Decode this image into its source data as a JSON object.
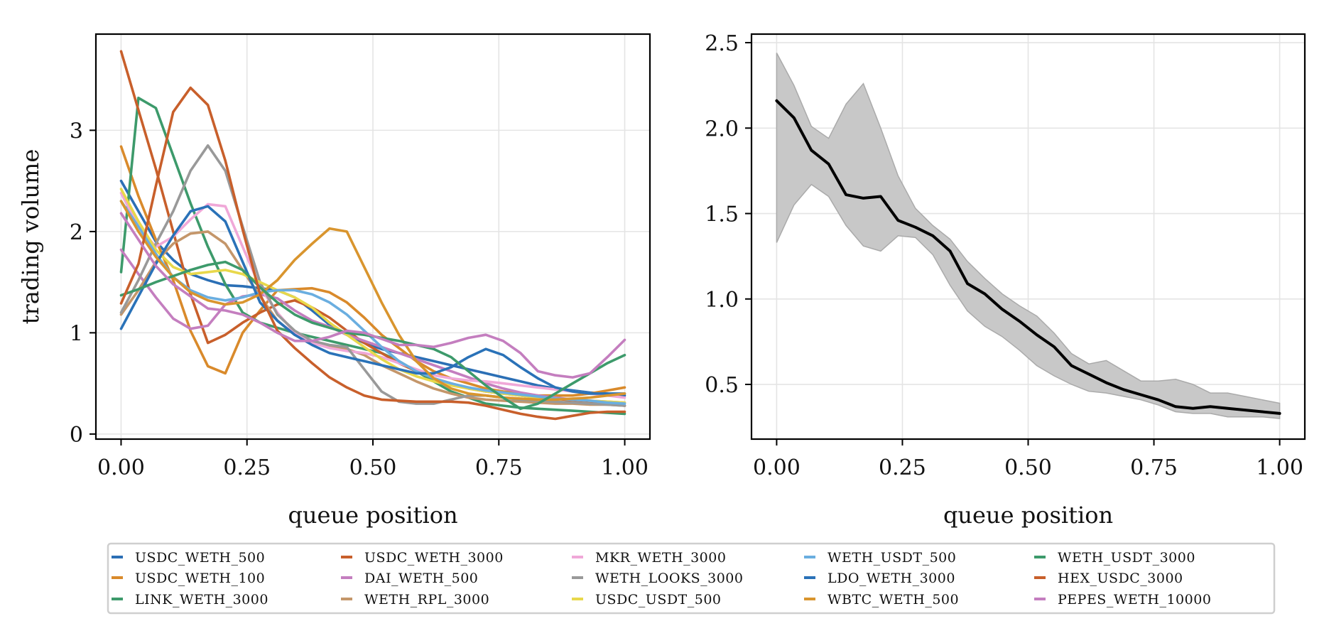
{
  "chart_data": [
    {
      "type": "line",
      "xlabel": "queue position",
      "ylabel": "trading volume",
      "xlim": [
        -0.05,
        1.05
      ],
      "ylim": [
        -0.05,
        3.95
      ],
      "xticks": [
        0.0,
        0.25,
        0.5,
        0.75,
        1.0
      ],
      "xtick_labels": [
        "0.00",
        "0.25",
        "0.50",
        "0.75",
        "1.00"
      ],
      "yticks": [
        0,
        1,
        2,
        3
      ],
      "ytick_labels": [
        "0",
        "1",
        "2",
        "3"
      ],
      "grid": true,
      "legend_placement": "bottom-center, outside",
      "x": [
        0.0,
        0.0345,
        0.069,
        0.1034,
        0.1379,
        0.1724,
        0.2069,
        0.2414,
        0.2759,
        0.3103,
        0.3448,
        0.3793,
        0.4138,
        0.4483,
        0.4828,
        0.5172,
        0.5517,
        0.5862,
        0.6207,
        0.6552,
        0.6897,
        0.7241,
        0.7586,
        0.7931,
        0.8276,
        0.8621,
        0.8966,
        0.931,
        0.9655,
        1.0
      ],
      "series": [
        {
          "name": "USDC_WETH_500",
          "color": "#2b6fb5",
          "values": [
            2.5,
            2.2,
            1.9,
            1.72,
            1.58,
            1.52,
            1.47,
            1.46,
            1.44,
            1.42,
            1.35,
            1.22,
            1.08,
            0.98,
            0.9,
            0.84,
            0.8,
            0.76,
            0.72,
            0.68,
            0.64,
            0.6,
            0.56,
            0.52,
            0.48,
            0.45,
            0.43,
            0.41,
            0.4,
            0.38
          ]
        },
        {
          "name": "USDC_WETH_100",
          "color": "#d98a2b",
          "values": [
            2.84,
            2.35,
            1.92,
            1.52,
            1.02,
            0.67,
            0.6,
            1.0,
            1.22,
            1.42,
            1.43,
            1.44,
            1.4,
            1.3,
            1.15,
            0.98,
            0.85,
            0.72,
            0.62,
            0.55,
            0.5,
            0.45,
            0.42,
            0.4,
            0.38,
            0.38,
            0.38,
            0.4,
            0.43,
            0.46
          ]
        },
        {
          "name": "LINK_WETH_3000",
          "color": "#3d9a6b",
          "values": [
            1.6,
            3.32,
            3.22,
            2.75,
            2.28,
            1.85,
            1.48,
            1.2,
            1.1,
            1.05,
            1.0,
            0.96,
            0.92,
            0.88,
            0.84,
            0.8,
            0.72,
            0.62,
            0.52,
            0.42,
            0.36,
            0.3,
            0.28,
            0.26,
            0.25,
            0.24,
            0.23,
            0.22,
            0.21,
            0.2
          ]
        },
        {
          "name": "USDC_WETH_3000",
          "color": "#c85f2b",
          "values": [
            3.78,
            3.2,
            2.62,
            2.0,
            1.38,
            0.9,
            0.98,
            1.1,
            1.2,
            1.28,
            1.32,
            1.25,
            1.15,
            1.02,
            0.9,
            0.8,
            0.7,
            0.62,
            0.55,
            0.5,
            0.45,
            0.42,
            0.4,
            0.38,
            0.36,
            0.35,
            0.33,
            0.32,
            0.3,
            0.28
          ]
        },
        {
          "name": "DAI_WETH_500",
          "color": "#c47ebf",
          "values": [
            1.82,
            1.58,
            1.35,
            1.14,
            1.04,
            1.07,
            1.28,
            1.36,
            1.38,
            1.34,
            1.22,
            1.12,
            1.06,
            0.98,
            0.92,
            0.86,
            0.8,
            0.74,
            0.68,
            0.62,
            0.56,
            0.5,
            0.45,
            0.41,
            0.38,
            0.36,
            0.34,
            0.33,
            0.32,
            0.31
          ]
        },
        {
          "name": "WETH_RPL_3000",
          "color": "#c4966a",
          "values": [
            1.18,
            1.42,
            1.7,
            1.88,
            1.98,
            2.0,
            1.88,
            1.62,
            1.36,
            1.12,
            0.98,
            0.9,
            0.86,
            0.84,
            0.78,
            0.68,
            0.6,
            0.52,
            0.45,
            0.4,
            0.36,
            0.34,
            0.33,
            0.32,
            0.31,
            0.3,
            0.3,
            0.29,
            0.29,
            0.28
          ]
        },
        {
          "name": "MKR_WETH_3000",
          "color": "#f0a8d8",
          "values": [
            2.38,
            2.05,
            1.85,
            1.95,
            2.12,
            2.27,
            2.25,
            1.85,
            1.45,
            1.2,
            1.0,
            0.9,
            0.85,
            0.82,
            0.8,
            0.76,
            0.7,
            0.64,
            0.58,
            0.55,
            0.53,
            0.52,
            0.5,
            0.48,
            0.46,
            0.44,
            0.42,
            0.4,
            0.38,
            0.36
          ]
        },
        {
          "name": "WETH_LOOKS_3000",
          "color": "#999999",
          "values": [
            1.2,
            1.52,
            1.88,
            2.2,
            2.6,
            2.85,
            2.6,
            2.05,
            1.5,
            1.18,
            1.02,
            0.92,
            0.88,
            0.86,
            0.64,
            0.42,
            0.32,
            0.3,
            0.3,
            0.34,
            0.38,
            0.38,
            0.36,
            0.34,
            0.33,
            0.32,
            0.31,
            0.3,
            0.29,
            0.28
          ]
        },
        {
          "name": "USDC_USDT_500",
          "color": "#e8d84b",
          "values": [
            2.42,
            2.1,
            1.82,
            1.65,
            1.58,
            1.6,
            1.62,
            1.58,
            1.5,
            1.42,
            1.35,
            1.25,
            1.1,
            0.98,
            0.86,
            0.74,
            0.64,
            0.57,
            0.52,
            0.48,
            0.45,
            0.42,
            0.4,
            0.38,
            0.36,
            0.35,
            0.34,
            0.33,
            0.32,
            0.31
          ]
        },
        {
          "name": "WETH_USDT_500",
          "color": "#6aaee0",
          "values": [
            2.3,
            2.05,
            1.78,
            1.55,
            1.42,
            1.35,
            1.32,
            1.35,
            1.4,
            1.42,
            1.42,
            1.38,
            1.3,
            1.18,
            1.02,
            0.86,
            0.72,
            0.62,
            0.55,
            0.5,
            0.46,
            0.43,
            0.41,
            0.39,
            0.37,
            0.35,
            0.34,
            0.33,
            0.31,
            0.3
          ]
        },
        {
          "name": "LDO_WETH_3000",
          "color": "#2a72b8",
          "values": [
            1.04,
            1.36,
            1.68,
            1.96,
            2.2,
            2.25,
            2.1,
            1.7,
            1.3,
            1.12,
            0.98,
            0.88,
            0.8,
            0.76,
            0.72,
            0.68,
            0.64,
            0.6,
            0.6,
            0.66,
            0.76,
            0.84,
            0.78,
            0.66,
            0.55,
            0.46,
            0.42,
            0.4,
            0.4,
            0.4
          ]
        },
        {
          "name": "WBTC_WETH_500",
          "color": "#d9952e",
          "values": [
            2.3,
            2.0,
            1.75,
            1.55,
            1.4,
            1.32,
            1.28,
            1.3,
            1.38,
            1.52,
            1.72,
            1.88,
            2.03,
            2.0,
            1.65,
            1.3,
            0.98,
            0.72,
            0.55,
            0.45,
            0.4,
            0.38,
            0.36,
            0.35,
            0.34,
            0.34,
            0.35,
            0.36,
            0.38,
            0.4
          ]
        },
        {
          "name": "WETH_USDT_3000",
          "color": "#3d9a6b",
          "values": [
            1.37,
            1.43,
            1.5,
            1.56,
            1.62,
            1.67,
            1.7,
            1.62,
            1.45,
            1.3,
            1.18,
            1.1,
            1.05,
            1.0,
            0.98,
            0.95,
            0.92,
            0.88,
            0.84,
            0.76,
            0.62,
            0.48,
            0.36,
            0.25,
            0.3,
            0.4,
            0.5,
            0.6,
            0.7,
            0.78
          ]
        },
        {
          "name": "HEX_USDC_3000",
          "color": "#c85f2b",
          "values": [
            1.29,
            1.68,
            2.45,
            3.18,
            3.42,
            3.25,
            2.7,
            2.02,
            1.38,
            1.02,
            0.85,
            0.7,
            0.56,
            0.46,
            0.38,
            0.34,
            0.33,
            0.32,
            0.32,
            0.32,
            0.31,
            0.28,
            0.24,
            0.2,
            0.17,
            0.15,
            0.18,
            0.21,
            0.22,
            0.22
          ]
        },
        {
          "name": "PEPES_WETH_10000",
          "color": "#c47ebf",
          "values": [
            2.18,
            1.92,
            1.66,
            1.48,
            1.36,
            1.24,
            1.22,
            1.18,
            1.1,
            1.0,
            0.92,
            0.92,
            0.96,
            1.02,
            1.0,
            0.94,
            0.88,
            0.88,
            0.86,
            0.9,
            0.95,
            0.98,
            0.92,
            0.8,
            0.62,
            0.58,
            0.56,
            0.6,
            0.76,
            0.93
          ]
        }
      ]
    },
    {
      "type": "line",
      "xlabel": "queue position",
      "ylabel": "",
      "xlim": [
        -0.05,
        1.05
      ],
      "ylim": [
        0.18,
        2.55
      ],
      "xticks": [
        0.0,
        0.25,
        0.5,
        0.75,
        1.0
      ],
      "xtick_labels": [
        "0.00",
        "0.25",
        "0.50",
        "0.75",
        "1.00"
      ],
      "yticks": [
        0.5,
        1.0,
        1.5,
        2.0,
        2.5
      ],
      "ytick_labels": [
        "0.5",
        "1.0",
        "1.5",
        "2.0",
        "2.5"
      ],
      "grid": true,
      "x": [
        0.0,
        0.0345,
        0.069,
        0.1034,
        0.1379,
        0.1724,
        0.2069,
        0.2414,
        0.2759,
        0.3103,
        0.3448,
        0.3793,
        0.4138,
        0.4483,
        0.4828,
        0.5172,
        0.5517,
        0.5862,
        0.6207,
        0.6552,
        0.6897,
        0.7241,
        0.7586,
        0.7931,
        0.8276,
        0.8621,
        0.8966,
        0.931,
        0.9655,
        1.0
      ],
      "series": [
        {
          "color": "#000000",
          "values": [
            2.16,
            2.06,
            1.87,
            1.79,
            1.61,
            1.59,
            1.6,
            1.46,
            1.42,
            1.37,
            1.28,
            1.09,
            1.03,
            0.94,
            0.87,
            0.79,
            0.72,
            0.61,
            0.56,
            0.51,
            0.47,
            0.44,
            0.41,
            0.37,
            0.36,
            0.37,
            0.36,
            0.35,
            0.34,
            0.33
          ]
        }
      ],
      "band": {
        "color": "#c8c8c8",
        "lower": [
          1.33,
          1.55,
          1.67,
          1.6,
          1.43,
          1.31,
          1.28,
          1.37,
          1.36,
          1.26,
          1.08,
          0.93,
          0.84,
          0.78,
          0.7,
          0.61,
          0.55,
          0.5,
          0.46,
          0.45,
          0.43,
          0.41,
          0.38,
          0.34,
          0.33,
          0.33,
          0.31,
          0.31,
          0.31,
          0.3
        ],
        "upper": [
          2.44,
          2.25,
          2.01,
          1.94,
          2.14,
          2.26,
          2.0,
          1.72,
          1.53,
          1.43,
          1.35,
          1.22,
          1.12,
          1.03,
          0.96,
          0.9,
          0.8,
          0.68,
          0.62,
          0.64,
          0.58,
          0.52,
          0.52,
          0.53,
          0.5,
          0.45,
          0.45,
          0.43,
          0.41,
          0.39
        ]
      }
    }
  ]
}
